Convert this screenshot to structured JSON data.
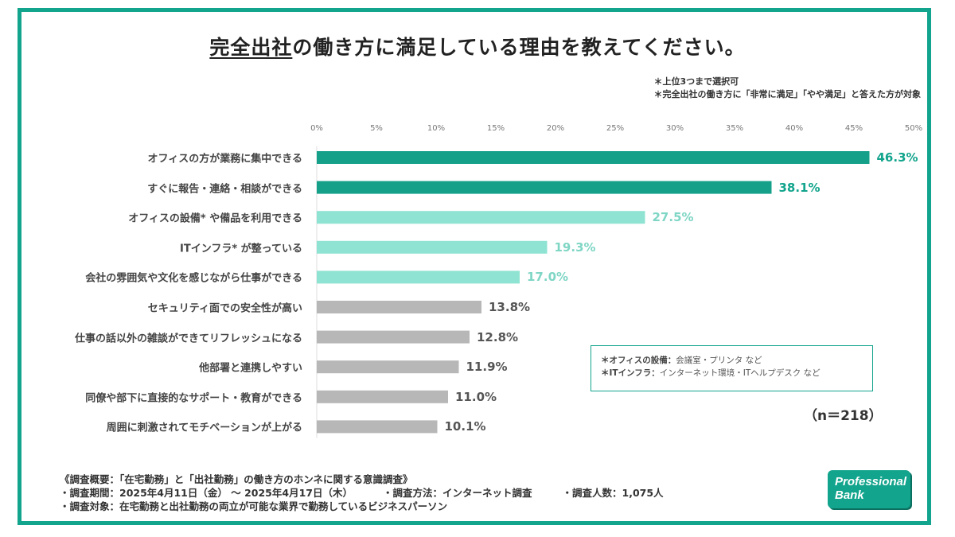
{
  "header": {
    "title_underlined": "完全出社",
    "title_rest": "の働き方に満足している理由を教えてください。",
    "note1": "＊上位3つまで選択可",
    "note2": "＊完全出社の働き方に「非常に満足」「やや満足」と答えた方が対象"
  },
  "colors": {
    "frame": "#12a48c",
    "top_bar": "#15a08a",
    "mid_bar": "#8fe3d2",
    "low_bar": "#b7b7b7",
    "top_text": "#12a48c",
    "mid_text": "#7fd6c5",
    "low_text": "#555555"
  },
  "chart_data": {
    "type": "bar",
    "orientation": "horizontal",
    "title": "完全出社の働き方に満足している理由を教えてください。",
    "categories": [
      "オフィスの方が業務に集中できる",
      "すぐに報告・連絡・相談ができる",
      "オフィスの設備* や備品を利用できる",
      "ITインフラ* が整っている",
      "会社の雰囲気や文化を感じながら仕事ができる",
      "セキュリティ面での安全性が高い",
      "仕事の話以外の雑談ができてリフレッシュになる",
      "他部署と連携しやすい",
      "同僚や部下に直接的なサポート・教育ができる",
      "周囲に刺激されてモチベーションが上がる"
    ],
    "values": [
      46.3,
      38.1,
      27.5,
      19.3,
      17.0,
      13.8,
      12.8,
      11.9,
      11.0,
      10.1
    ],
    "value_labels": [
      "46.3%",
      "38.1%",
      "27.5%",
      "19.3%",
      "17.0%",
      "13.8%",
      "12.8%",
      "11.9%",
      "11.0%",
      "10.1%"
    ],
    "color_group": [
      "top",
      "top",
      "mid",
      "mid",
      "mid",
      "low",
      "low",
      "low",
      "low",
      "low"
    ],
    "xlim": [
      0,
      50
    ],
    "ticks": [
      "0%",
      "5%",
      "10%",
      "15%",
      "20%",
      "25%",
      "30%",
      "35%",
      "40%",
      "45%",
      "50%"
    ],
    "xlabel": "",
    "ylabel": ""
  },
  "legend_box": {
    "line1_head": "＊オフィスの設備：",
    "line1_body": "会議室・プリンタ など",
    "line2_head": "＊ITインフラ：",
    "line2_body": "インターネット環境・ITヘルプデスク など"
  },
  "sample": "（n＝218）",
  "survey": {
    "line1": "《調査概要：「在宅勤務」と「出社勤務」の働き方のホンネに関する意識調査》",
    "line2a": "・調査期間：2025年4月11日（金）  ～ 2025年4月17日（木）",
    "line2b": "・調査方法：インターネット調査",
    "line2c": "・調査人数：1,075人",
    "line3": "・調査対象：在宅勤務と出社勤務の両立が可能な業界で勤務しているビジネスパーソン"
  },
  "logo": {
    "line1": "Professional",
    "line2": "Bank"
  }
}
